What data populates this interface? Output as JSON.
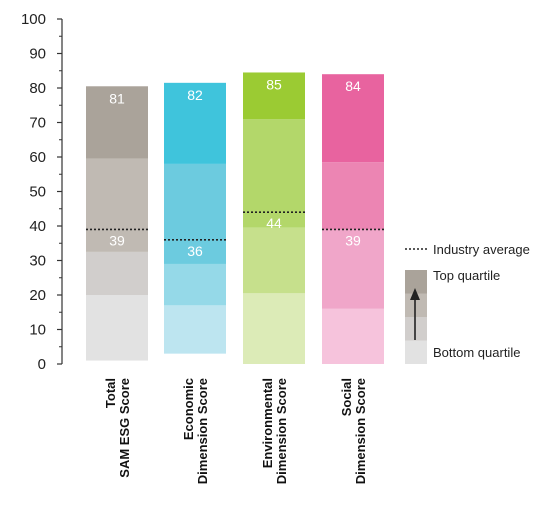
{
  "chart_data": {
    "type": "bar",
    "title": "",
    "xlabel": "",
    "ylabel": "",
    "ylim": [
      0,
      100
    ],
    "yticks": [
      0,
      10,
      20,
      30,
      40,
      50,
      60,
      70,
      80,
      90,
      100
    ],
    "grid": false,
    "legend_position": "right",
    "categories": [
      {
        "lines": [
          "Total",
          "SAM ESG Score"
        ]
      },
      {
        "lines": [
          "Economic",
          "Dimension Score"
        ]
      },
      {
        "lines": [
          "Environmental",
          "Dimension Score"
        ]
      },
      {
        "lines": [
          "Social",
          "Dimension Score"
        ]
      }
    ],
    "series": [
      {
        "score": 81,
        "score_label": "81",
        "industry_average": 39,
        "industry_average_label": "39",
        "quartile_boundaries": [
          1,
          20,
          32.5,
          59.5,
          80.5
        ],
        "colors": [
          "#e2e2e2",
          "#d1cecc",
          "#c0bab3",
          "#aaa39a"
        ]
      },
      {
        "score": 82,
        "score_label": "82",
        "industry_average": 36,
        "industry_average_label": "36",
        "quartile_boundaries": [
          3,
          17,
          29,
          58,
          81.5
        ],
        "colors": [
          "#bde5f0",
          "#95d9e8",
          "#6ccbdf",
          "#3fc4dc"
        ]
      },
      {
        "score": 85,
        "score_label": "85",
        "industry_average": 44,
        "industry_average_label": "44",
        "quartile_boundaries": [
          0,
          20.5,
          39.5,
          71,
          84.5
        ],
        "colors": [
          "#dcebb7",
          "#c6e08c",
          "#b3d76a",
          "#9bcb33"
        ]
      },
      {
        "score": 84,
        "score_label": "84",
        "industry_average": 39,
        "industry_average_label": "39",
        "quartile_boundaries": [
          0,
          16,
          39,
          58.5,
          84
        ],
        "colors": [
          "#f6c3dc",
          "#f0a6c9",
          "#ec85b3",
          "#e8639f"
        ]
      }
    ],
    "legend": {
      "industry_average_label": "Industry average",
      "top_quartile_label": "Top quartile",
      "bottom_quartile_label": "Bottom quartile",
      "swatch_colors": [
        "#aaa39a",
        "#c0bab3",
        "#d1cecc",
        "#e2e2e2"
      ]
    }
  }
}
